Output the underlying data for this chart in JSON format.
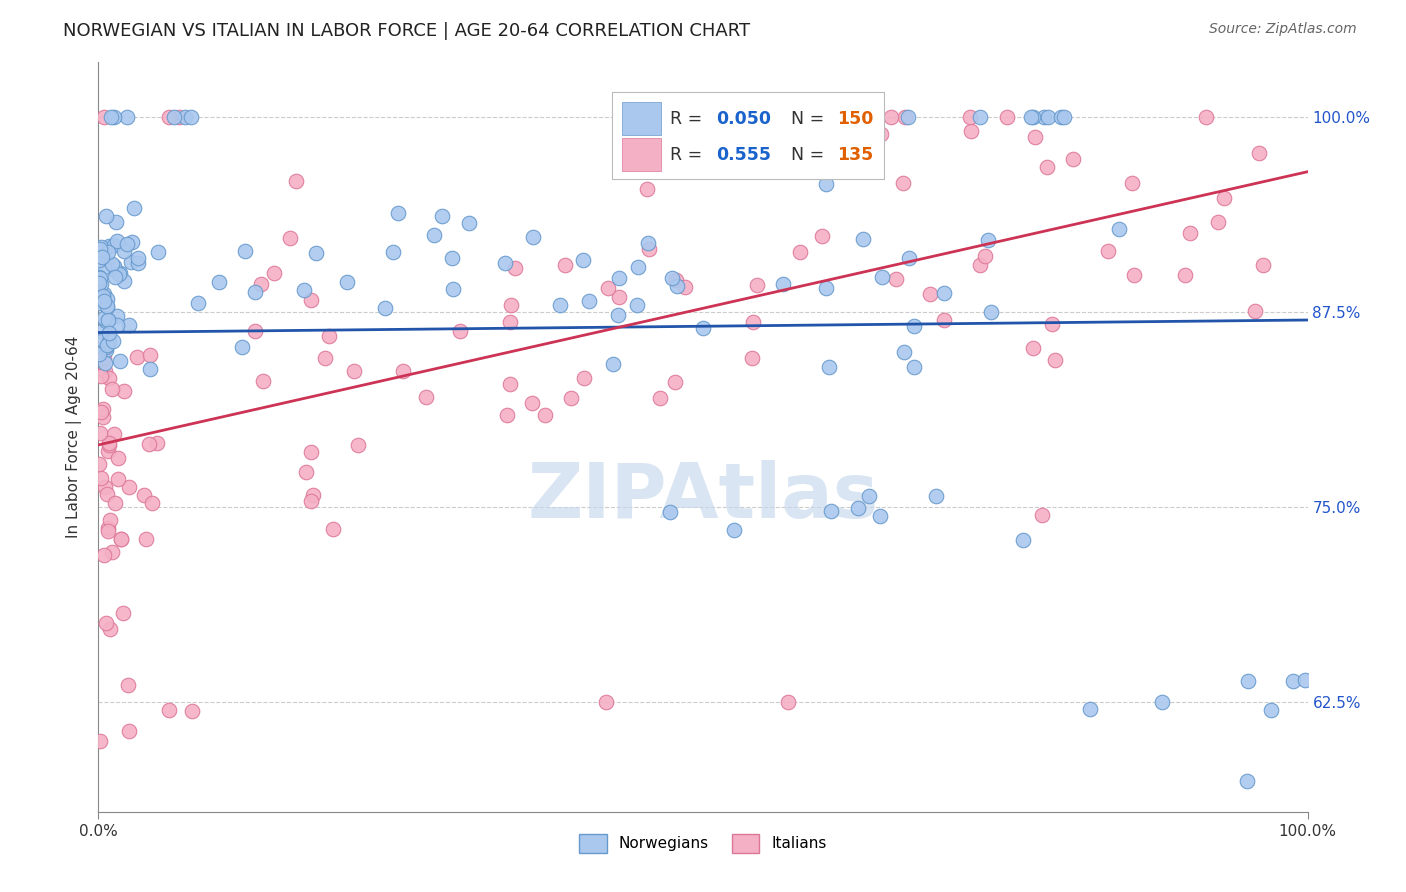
{
  "title": "NORWEGIAN VS ITALIAN IN LABOR FORCE | AGE 20-64 CORRELATION CHART",
  "source_text": "Source: ZipAtlas.com",
  "ylabel": "In Labor Force | Age 20-64",
  "xlim": [
    0.0,
    1.0
  ],
  "ylim": [
    0.555,
    1.035
  ],
  "ytick_labels": [
    "62.5%",
    "75.0%",
    "87.5%",
    "100.0%"
  ],
  "ytick_values": [
    0.625,
    0.75,
    0.875,
    1.0
  ],
  "xtick_labels": [
    "0.0%",
    "100.0%"
  ],
  "xtick_values": [
    0.0,
    1.0
  ],
  "legend_r_color": "#1a62cc",
  "legend_n_color": "#e06000",
  "watermark": "ZIPAtlas",
  "norwegian_color": "#aac8ee",
  "italian_color": "#f4b0c4",
  "norwegian_edge_color": "#6699cc",
  "italian_edge_color": "#dd7799",
  "trend_norwegian_color": "#2255aa",
  "trend_italian_color": "#cc3355",
  "background_color": "#ffffff",
  "grid_color": "#cccccc",
  "title_fontsize": 13,
  "axis_label_fontsize": 11,
  "tick_fontsize": 11,
  "source_fontsize": 10,
  "N_norwegian": 150,
  "N_italian": 135,
  "R_norwegian": 0.05,
  "R_italian": 0.555,
  "ytick_color": "#2255cc",
  "marker_size": 110
}
